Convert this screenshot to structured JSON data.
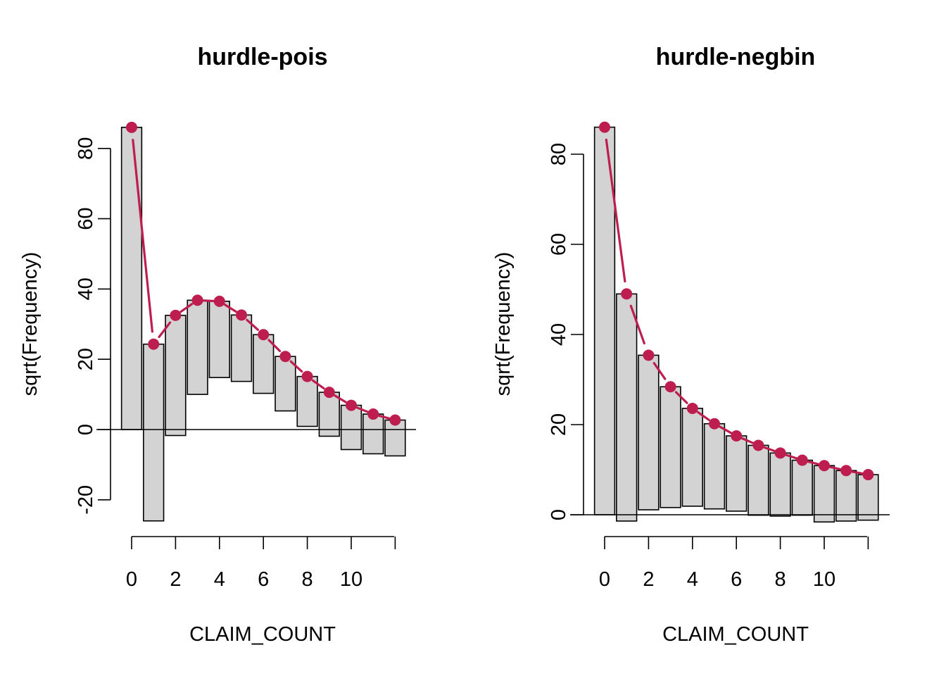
{
  "chart_data": [
    {
      "type": "bar",
      "subtype": "hanging rootogram",
      "title": "hurdle-pois",
      "xlabel": "CLAIM_COUNT",
      "ylabel": "sqrt(Frequency)",
      "x": [
        0,
        1,
        2,
        3,
        4,
        5,
        6,
        7,
        8,
        9,
        10,
        11,
        12
      ],
      "x_ticks": [
        0,
        2,
        4,
        6,
        8,
        10
      ],
      "y_ticks": [
        -20,
        0,
        20,
        40,
        60,
        80
      ],
      "ylim": [
        -26,
        86
      ],
      "bar_top": [
        86,
        24.3,
        32.5,
        36.8,
        36.5,
        32.6,
        27,
        20.8,
        15.1,
        10.6,
        6.9,
        4.4,
        2.7
      ],
      "bar_bottom": [
        0,
        -26,
        -1.7,
        10,
        14.8,
        13.7,
        10.3,
        5.3,
        0.9,
        -1.9,
        -5.7,
        -6.9,
        -7.5
      ],
      "expected": [
        86,
        24.3,
        32.5,
        36.8,
        36.5,
        32.6,
        27,
        20.8,
        15.1,
        10.6,
        6.9,
        4.4,
        2.7
      ],
      "bar_color": "#d3d3d3",
      "line_color": "#be1e4f"
    },
    {
      "type": "bar",
      "subtype": "hanging rootogram",
      "title": "hurdle-negbin",
      "xlabel": "CLAIM_COUNT",
      "ylabel": "sqrt(Frequency)",
      "x": [
        0,
        1,
        2,
        3,
        4,
        5,
        6,
        7,
        8,
        9,
        10,
        11,
        12
      ],
      "x_ticks": [
        0,
        2,
        4,
        6,
        8,
        10
      ],
      "y_ticks": [
        0,
        20,
        40,
        60,
        80
      ],
      "ylim": [
        -1.5,
        86
      ],
      "bar_top": [
        86,
        49,
        35.4,
        28.4,
        23.6,
        20.2,
        17.5,
        15.4,
        13.7,
        12.1,
        10.9,
        9.8,
        8.9
      ],
      "bar_bottom": [
        0,
        -1.4,
        1.1,
        1.6,
        1.9,
        1.3,
        0.8,
        -0.1,
        -0.3,
        -0.1,
        -1.6,
        -1.4,
        -1.2
      ],
      "expected": [
        86,
        49,
        35.4,
        28.4,
        23.6,
        20.2,
        17.5,
        15.4,
        13.7,
        12.1,
        10.9,
        9.8,
        8.9
      ],
      "bar_color": "#d3d3d3",
      "line_color": "#be1e4f"
    }
  ]
}
